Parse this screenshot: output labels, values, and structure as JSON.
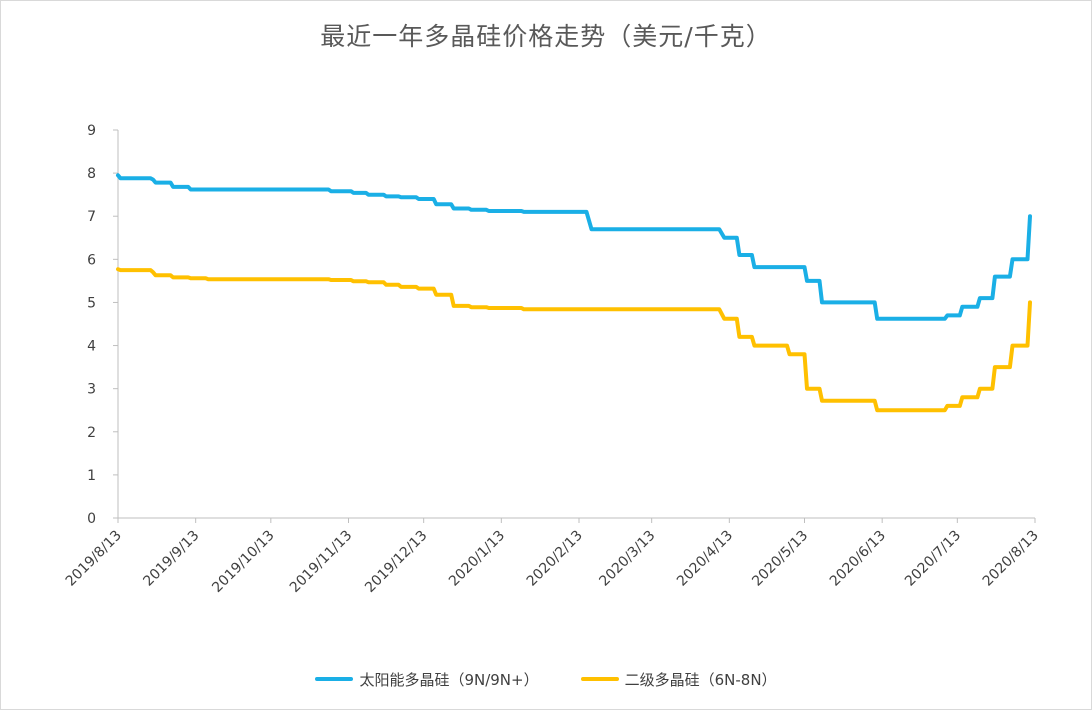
{
  "chart_data": {
    "type": "line",
    "title": "最近一年多晶硅价格走势（美元/千克）",
    "xlabel": "",
    "ylabel": "",
    "ylim": [
      0,
      9
    ],
    "yticks": [
      0,
      1,
      2,
      3,
      4,
      5,
      6,
      7,
      8,
      9
    ],
    "xlim": [
      "2019-08-13",
      "2020-08-13"
    ],
    "xtick_labels": [
      "2019/8/13",
      "2019/9/13",
      "2019/10/13",
      "2019/11/13",
      "2019/12/13",
      "2020/1/13",
      "2020/2/13",
      "2020/3/13",
      "2020/4/13",
      "2020/5/13",
      "2020/6/13",
      "2020/7/13",
      "2020/8/13"
    ],
    "grid": false,
    "legend_position": "bottom",
    "series": [
      {
        "name": "太阳能多晶硅（9N/9N+）",
        "color": "#1aafe6",
        "points": [
          [
            "2019-08-13",
            7.95
          ],
          [
            "2019-08-14",
            7.88
          ],
          [
            "2019-08-26",
            7.88
          ],
          [
            "2019-08-27",
            7.85
          ],
          [
            "2019-08-28",
            7.78
          ],
          [
            "2019-09-03",
            7.78
          ],
          [
            "2019-09-04",
            7.68
          ],
          [
            "2019-09-10",
            7.68
          ],
          [
            "2019-09-11",
            7.62
          ],
          [
            "2019-11-05",
            7.62
          ],
          [
            "2019-11-06",
            7.58
          ],
          [
            "2019-11-14",
            7.58
          ],
          [
            "2019-11-15",
            7.54
          ],
          [
            "2019-11-20",
            7.54
          ],
          [
            "2019-11-21",
            7.5
          ],
          [
            "2019-11-27",
            7.5
          ],
          [
            "2019-11-28",
            7.46
          ],
          [
            "2019-12-03",
            7.46
          ],
          [
            "2019-12-04",
            7.44
          ],
          [
            "2019-12-10",
            7.44
          ],
          [
            "2019-12-11",
            7.4
          ],
          [
            "2019-12-17",
            7.4
          ],
          [
            "2019-12-18",
            7.28
          ],
          [
            "2019-12-24",
            7.28
          ],
          [
            "2019-12-25",
            7.18
          ],
          [
            "2019-12-31",
            7.18
          ],
          [
            "2020-01-01",
            7.15
          ],
          [
            "2020-01-07",
            7.15
          ],
          [
            "2020-01-08",
            7.12
          ],
          [
            "2020-01-21",
            7.12
          ],
          [
            "2020-01-22",
            7.1
          ],
          [
            "2020-02-16",
            7.1
          ],
          [
            "2020-02-18",
            6.7
          ],
          [
            "2020-04-09",
            6.7
          ],
          [
            "2020-04-11",
            6.5
          ],
          [
            "2020-04-16",
            6.5
          ],
          [
            "2020-04-17",
            6.1
          ],
          [
            "2020-04-22",
            6.1
          ],
          [
            "2020-04-23",
            5.82
          ],
          [
            "2020-05-13",
            5.82
          ],
          [
            "2020-05-14",
            5.5
          ],
          [
            "2020-05-19",
            5.5
          ],
          [
            "2020-05-20",
            5.0
          ],
          [
            "2020-06-10",
            5.0
          ],
          [
            "2020-06-11",
            4.62
          ],
          [
            "2020-07-08",
            4.62
          ],
          [
            "2020-07-09",
            4.7
          ],
          [
            "2020-07-14",
            4.7
          ],
          [
            "2020-07-15",
            4.9
          ],
          [
            "2020-07-21",
            4.9
          ],
          [
            "2020-07-22",
            5.1
          ],
          [
            "2020-07-27",
            5.1
          ],
          [
            "2020-07-28",
            5.6
          ],
          [
            "2020-08-03",
            5.6
          ],
          [
            "2020-08-04",
            6.0
          ],
          [
            "2020-08-10",
            6.0
          ],
          [
            "2020-08-11",
            7.0
          ]
        ]
      },
      {
        "name": "二级多晶硅（6N-8N）",
        "color": "#ffc000",
        "points": [
          [
            "2019-08-13",
            5.77
          ],
          [
            "2019-08-14",
            5.75
          ],
          [
            "2019-08-26",
            5.75
          ],
          [
            "2019-08-27",
            5.7
          ],
          [
            "2019-08-28",
            5.63
          ],
          [
            "2019-09-03",
            5.63
          ],
          [
            "2019-09-04",
            5.58
          ],
          [
            "2019-09-10",
            5.58
          ],
          [
            "2019-09-11",
            5.56
          ],
          [
            "2019-09-17",
            5.56
          ],
          [
            "2019-09-18",
            5.54
          ],
          [
            "2019-11-05",
            5.54
          ],
          [
            "2019-11-06",
            5.52
          ],
          [
            "2019-11-14",
            5.52
          ],
          [
            "2019-11-15",
            5.49
          ],
          [
            "2019-11-20",
            5.49
          ],
          [
            "2019-11-21",
            5.47
          ],
          [
            "2019-11-27",
            5.47
          ],
          [
            "2019-11-28",
            5.41
          ],
          [
            "2019-12-03",
            5.41
          ],
          [
            "2019-12-04",
            5.36
          ],
          [
            "2019-12-10",
            5.36
          ],
          [
            "2019-12-11",
            5.32
          ],
          [
            "2019-12-17",
            5.32
          ],
          [
            "2019-12-18",
            5.18
          ],
          [
            "2019-12-24",
            5.18
          ],
          [
            "2019-12-25",
            4.92
          ],
          [
            "2019-12-31",
            4.92
          ],
          [
            "2020-01-01",
            4.89
          ],
          [
            "2020-01-07",
            4.89
          ],
          [
            "2020-01-08",
            4.87
          ],
          [
            "2020-01-21",
            4.87
          ],
          [
            "2020-01-22",
            4.84
          ],
          [
            "2020-04-09",
            4.84
          ],
          [
            "2020-04-11",
            4.62
          ],
          [
            "2020-04-16",
            4.62
          ],
          [
            "2020-04-17",
            4.2
          ],
          [
            "2020-04-22",
            4.2
          ],
          [
            "2020-04-23",
            4.0
          ],
          [
            "2020-05-06",
            4.0
          ],
          [
            "2020-05-07",
            3.8
          ],
          [
            "2020-05-13",
            3.8
          ],
          [
            "2020-05-14",
            3.0
          ],
          [
            "2020-05-19",
            3.0
          ],
          [
            "2020-05-20",
            2.72
          ],
          [
            "2020-06-10",
            2.72
          ],
          [
            "2020-06-11",
            2.5
          ],
          [
            "2020-07-08",
            2.5
          ],
          [
            "2020-07-09",
            2.6
          ],
          [
            "2020-07-14",
            2.6
          ],
          [
            "2020-07-15",
            2.8
          ],
          [
            "2020-07-21",
            2.8
          ],
          [
            "2020-07-22",
            3.0
          ],
          [
            "2020-07-27",
            3.0
          ],
          [
            "2020-07-28",
            3.5
          ],
          [
            "2020-08-03",
            3.5
          ],
          [
            "2020-08-04",
            4.0
          ],
          [
            "2020-08-10",
            4.0
          ],
          [
            "2020-08-11",
            5.0
          ]
        ]
      }
    ]
  }
}
